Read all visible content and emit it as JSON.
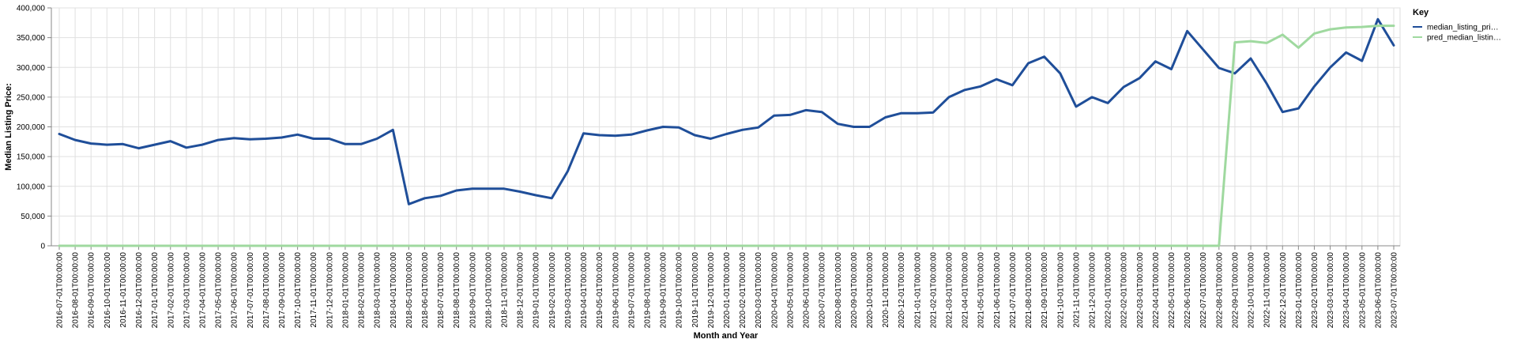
{
  "chart_data": {
    "type": "line",
    "title": "",
    "xlabel": "Month and Year",
    "ylabel": "Median Listing Price:",
    "ylim": [
      0,
      400000
    ],
    "y_ticks": [
      0,
      50000,
      100000,
      150000,
      200000,
      250000,
      300000,
      350000,
      400000
    ],
    "y_tick_labels": [
      "0",
      "50,000",
      "100,000",
      "150,000",
      "200,000",
      "250,000",
      "300,000",
      "350,000",
      "400,000"
    ],
    "grid": true,
    "legend": {
      "title": "Key",
      "placement": "right",
      "entries": [
        "median_listing_pri…",
        "pred_median_listin…"
      ]
    },
    "x": [
      "2016-07-01T00:00:00",
      "2016-08-01T00:00:00",
      "2016-09-01T00:00:00",
      "2016-10-01T00:00:00",
      "2016-11-01T00:00:00",
      "2016-12-01T00:00:00",
      "2017-01-01T00:00:00",
      "2017-02-01T00:00:00",
      "2017-03-01T00:00:00",
      "2017-04-01T00:00:00",
      "2017-05-01T00:00:00",
      "2017-06-01T00:00:00",
      "2017-07-01T00:00:00",
      "2017-08-01T00:00:00",
      "2017-09-01T00:00:00",
      "2017-10-01T00:00:00",
      "2017-11-01T00:00:00",
      "2017-12-01T00:00:00",
      "2018-01-01T00:00:00",
      "2018-02-01T00:00:00",
      "2018-03-01T00:00:00",
      "2018-04-01T00:00:00",
      "2018-05-01T00:00:00",
      "2018-06-01T00:00:00",
      "2018-07-01T00:00:00",
      "2018-08-01T00:00:00",
      "2018-09-01T00:00:00",
      "2018-10-01T00:00:00",
      "2018-11-01T00:00:00",
      "2018-12-01T00:00:00",
      "2019-01-01T00:00:00",
      "2019-02-01T00:00:00",
      "2019-03-01T00:00:00",
      "2019-04-01T00:00:00",
      "2019-05-01T00:00:00",
      "2019-06-01T00:00:00",
      "2019-07-01T00:00:00",
      "2019-08-01T00:00:00",
      "2019-09-01T00:00:00",
      "2019-10-01T00:00:00",
      "2019-11-01T00:00:00",
      "2019-12-01T00:00:00",
      "2020-01-01T00:00:00",
      "2020-02-01T00:00:00",
      "2020-03-01T00:00:00",
      "2020-04-01T00:00:00",
      "2020-05-01T00:00:00",
      "2020-06-01T00:00:00",
      "2020-07-01T00:00:00",
      "2020-08-01T00:00:00",
      "2020-09-01T00:00:00",
      "2020-10-01T00:00:00",
      "2020-11-01T00:00:00",
      "2020-12-01T00:00:00",
      "2021-01-01T00:00:00",
      "2021-02-01T00:00:00",
      "2021-03-01T00:00:00",
      "2021-04-01T00:00:00",
      "2021-05-01T00:00:00",
      "2021-06-01T00:00:00",
      "2021-07-01T00:00:00",
      "2021-08-01T00:00:00",
      "2021-09-01T00:00:00",
      "2021-10-01T00:00:00",
      "2021-11-01T00:00:00",
      "2021-12-01T00:00:00",
      "2022-01-01T00:00:00",
      "2022-02-01T00:00:00",
      "2022-03-01T00:00:00",
      "2022-04-01T00:00:00",
      "2022-05-01T00:00:00",
      "2022-06-01T00:00:00",
      "2022-07-01T00:00:00",
      "2022-08-01T00:00:00",
      "2022-09-01T00:00:00",
      "2022-10-01T00:00:00",
      "2022-11-01T00:00:00",
      "2022-12-01T00:00:00",
      "2023-01-01T00:00:00",
      "2023-02-01T00:00:00",
      "2023-03-01T00:00:00",
      "2023-04-01T00:00:00",
      "2023-05-01T00:00:00",
      "2023-06-01T00:00:00",
      "2023-07-01T00:00:00"
    ],
    "series": [
      {
        "name": "median_listing_pri…",
        "color": "#1f4e99",
        "values": [
          188000,
          178000,
          172000,
          170000,
          171000,
          164000,
          170000,
          176000,
          165000,
          170000,
          178000,
          181000,
          179000,
          180000,
          182000,
          187000,
          180000,
          180000,
          171000,
          171000,
          180000,
          195000,
          70000,
          80000,
          84000,
          93000,
          96000,
          96000,
          96000,
          91000,
          85000,
          80000,
          125000,
          189000,
          186000,
          185000,
          187000,
          194000,
          200000,
          199000,
          186000,
          180000,
          188000,
          195000,
          199000,
          219000,
          220000,
          228000,
          225000,
          205000,
          200000,
          200000,
          216000,
          223000,
          223000,
          224000,
          250000,
          262000,
          268000,
          280000,
          270000,
          307000,
          318000,
          290000,
          234000,
          250000,
          240000,
          267000,
          282000,
          310000,
          297000,
          361000,
          330000,
          299000,
          290000,
          315000,
          273000,
          225000,
          231000,
          268000,
          300000,
          325000,
          311000,
          381000,
          337000
        ]
      },
      {
        "name": "pred_median_listin…",
        "color": "#9fd99f",
        "values": [
          0,
          0,
          0,
          0,
          0,
          0,
          0,
          0,
          0,
          0,
          0,
          0,
          0,
          0,
          0,
          0,
          0,
          0,
          0,
          0,
          0,
          0,
          0,
          0,
          0,
          0,
          0,
          0,
          0,
          0,
          0,
          0,
          0,
          0,
          0,
          0,
          0,
          0,
          0,
          0,
          0,
          0,
          0,
          0,
          0,
          0,
          0,
          0,
          0,
          0,
          0,
          0,
          0,
          0,
          0,
          0,
          0,
          0,
          0,
          0,
          0,
          0,
          0,
          0,
          0,
          0,
          0,
          0,
          0,
          0,
          0,
          0,
          0,
          0,
          342000,
          344000,
          341000,
          355000,
          333000,
          357000,
          364000,
          367000,
          368000,
          370000,
          370000
        ]
      }
    ]
  }
}
